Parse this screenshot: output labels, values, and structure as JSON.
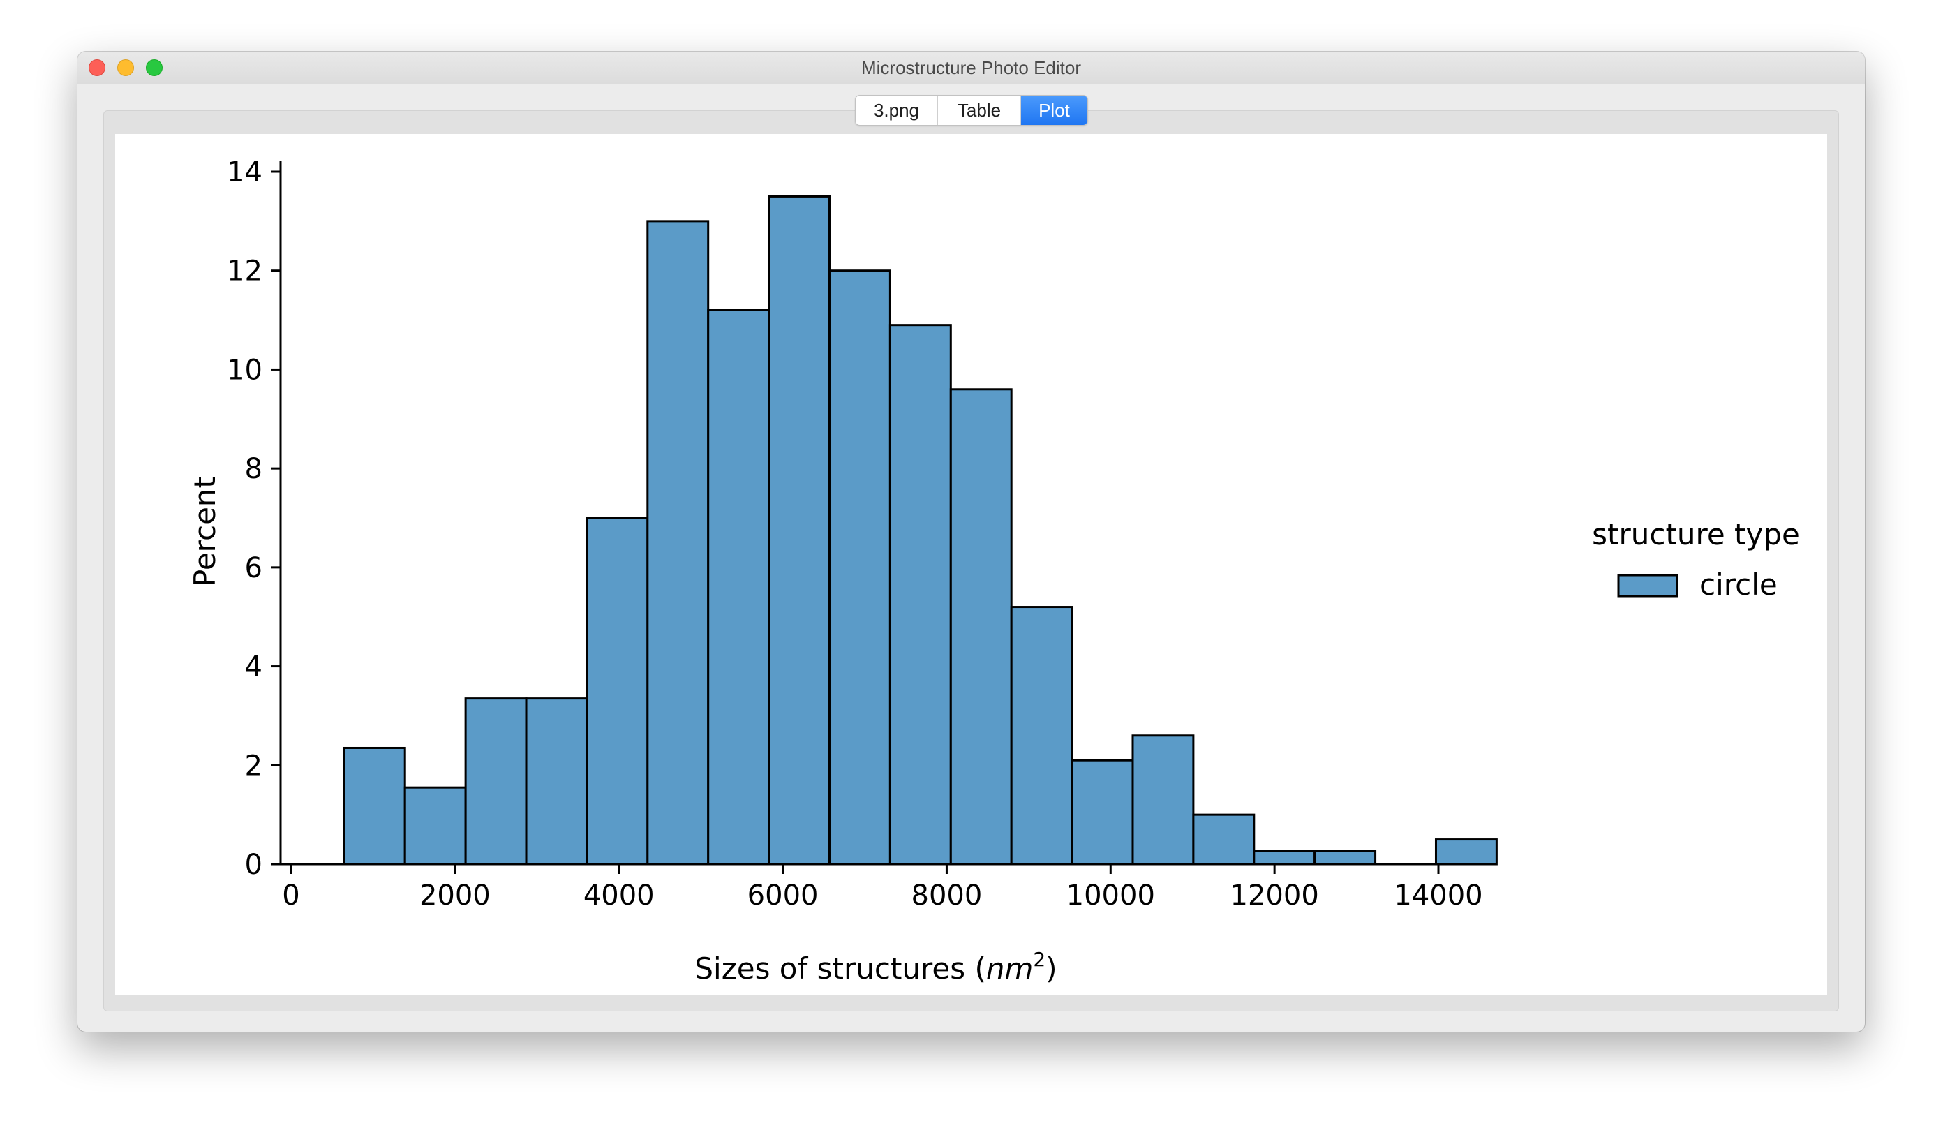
{
  "window": {
    "title": "Microstructure Photo Editor"
  },
  "tabs": [
    {
      "label": "3.png",
      "active": false
    },
    {
      "label": "Table",
      "active": false
    },
    {
      "label": "Plot",
      "active": true
    }
  ],
  "colors": {
    "bar_fill": "#5b9bc8",
    "bar_edge": "#000000",
    "tab_active": "#2a7df5"
  },
  "chart_data": {
    "type": "bar",
    "title": "",
    "xlabel": "Sizes of structures (nm²)",
    "ylabel": "Percent",
    "xlim": [
      0,
      15500
    ],
    "ylim": [
      0,
      14
    ],
    "xticks": [
      0,
      2000,
      4000,
      6000,
      8000,
      10000,
      12000,
      14000
    ],
    "yticks": [
      0,
      2,
      4,
      6,
      8,
      10,
      12,
      14
    ],
    "bin_edges": [
      650,
      1390,
      2130,
      2870,
      3610,
      4350,
      5090,
      5830,
      6570,
      7310,
      8050,
      8790,
      9530,
      10270,
      11010,
      11750,
      12490,
      13230,
      13970,
      14710
    ],
    "values": [
      2.35,
      1.55,
      3.35,
      3.35,
      7.0,
      13.0,
      11.2,
      13.5,
      12.0,
      10.9,
      9.6,
      5.2,
      2.1,
      2.6,
      1.0,
      0.27,
      0.27,
      0.0,
      0.5
    ],
    "series": [
      {
        "name": "circle",
        "values": [
          2.35,
          1.55,
          3.35,
          3.35,
          7.0,
          13.0,
          11.2,
          13.5,
          12.0,
          10.9,
          9.6,
          5.2,
          2.1,
          2.6,
          1.0,
          0.27,
          0.27,
          0.0,
          0.5
        ]
      }
    ],
    "legend": {
      "title": "structure type",
      "entries": [
        "circle"
      ],
      "placement": "right"
    },
    "grid": false
  }
}
